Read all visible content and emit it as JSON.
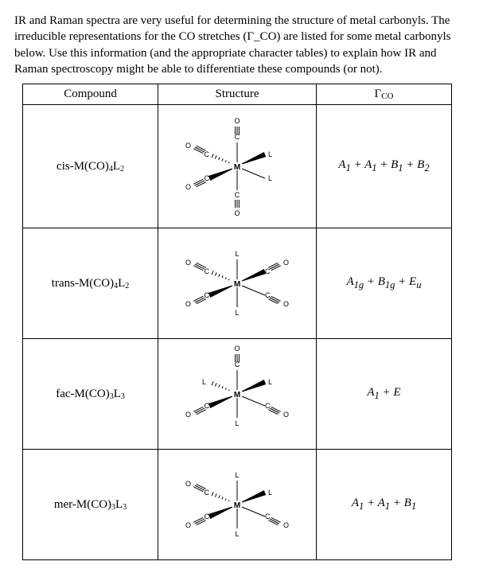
{
  "intro": "IR and Raman spectra are very useful for determining the structure of metal carbonyls. The irreducible representations for the CO stretches (Γ_CO) are listed for some metal carbonyls below. Use this information (and the appropriate character tables) to explain how IR and Raman spectroscopy might be able to differentiate these compounds (or not).",
  "table": {
    "headers": {
      "compound": "Compound",
      "structure": "Structure",
      "gamma": "Γ",
      "gamma_sub": "CO"
    },
    "rows": [
      {
        "compound_base": "cis-M(CO)",
        "compound_sub1": "4",
        "compound_mid": "L",
        "compound_sub2": "2",
        "gamma_html": "A<sub>1</sub> + A<sub>1</sub> + B<sub>1</sub> + B<sub>2</sub>",
        "structure": "cis4"
      },
      {
        "compound_base": "trans-M(CO)",
        "compound_sub1": "4",
        "compound_mid": "L",
        "compound_sub2": "2",
        "gamma_html": "A<sub>1g</sub> + B<sub>1g</sub> + E<sub>u</sub>",
        "structure": "trans4"
      },
      {
        "compound_base": "fac-M(CO)",
        "compound_sub1": "3",
        "compound_mid": "L",
        "compound_sub2": "3",
        "gamma_html": "A<sub>1</sub> + E",
        "structure": "fac3"
      },
      {
        "compound_base": "mer-M(CO)",
        "compound_sub1": "3",
        "compound_mid": "L",
        "compound_sub2": "3",
        "gamma_html": "A<sub>1</sub> + A<sub>1</sub> + B<sub>1</sub>",
        "structure": "mer3"
      }
    ]
  },
  "svg": {
    "stroke": "#000",
    "stroke_width": 1
  }
}
